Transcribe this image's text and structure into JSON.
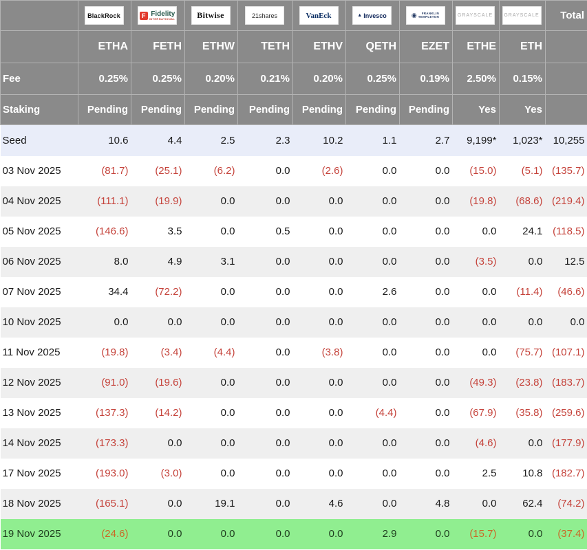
{
  "header": {
    "total_label": "Total",
    "fee_label": "Fee",
    "staking_label": "Staking",
    "providers": [
      {
        "id": "blackrock",
        "logo": "BlackRock",
        "ticker": "ETHA",
        "fee": "0.25%",
        "staking": "Pending"
      },
      {
        "id": "fidelity",
        "logo_f": "F",
        "logo": "Fidelity",
        "logo_sub": "INTERNATIONAL",
        "ticker": "FETH",
        "fee": "0.25%",
        "staking": "Pending"
      },
      {
        "id": "bitwise",
        "logo": "Bitwise",
        "ticker": "ETHW",
        "fee": "0.20%",
        "staking": "Pending"
      },
      {
        "id": "21shares",
        "logo": "21shares",
        "ticker": "TETH",
        "fee": "0.21%",
        "staking": "Pending"
      },
      {
        "id": "vaneck",
        "logo": "VanEck",
        "ticker": "ETHV",
        "fee": "0.20%",
        "staking": "Pending"
      },
      {
        "id": "invesco",
        "logo": "Invesco",
        "ticker": "QETH",
        "fee": "0.25%",
        "staking": "Pending"
      },
      {
        "id": "franklin",
        "logo_line1": "FRANKLIN",
        "logo_line2": "TEMPLETON",
        "ticker": "EZET",
        "fee": "0.19%",
        "staking": "Pending"
      },
      {
        "id": "grayscale-ethe",
        "logo": "GRAYSCALE",
        "ticker": "ETHE",
        "fee": "2.50%",
        "staking": "Yes"
      },
      {
        "id": "grayscale-eth",
        "logo": "GRAYSCALE",
        "ticker": "ETH",
        "fee": "0.15%",
        "staking": "Yes"
      }
    ]
  },
  "body": {
    "seed": {
      "label": "Seed",
      "values": [
        "10.6",
        "4.4",
        "2.5",
        "2.3",
        "10.2",
        "1.1",
        "2.7",
        "9,199*",
        "1,023*",
        "10,255"
      ]
    },
    "rows": [
      {
        "date": "03 Nov 2025",
        "values": [
          "(81.7)",
          "(25.1)",
          "(6.2)",
          "0.0",
          "(2.6)",
          "0.0",
          "0.0",
          "(15.0)",
          "(5.1)",
          "(135.7)"
        ]
      },
      {
        "date": "04 Nov 2025",
        "values": [
          "(111.1)",
          "(19.9)",
          "0.0",
          "0.0",
          "0.0",
          "0.0",
          "0.0",
          "(19.8)",
          "(68.6)",
          "(219.4)"
        ]
      },
      {
        "date": "05 Nov 2025",
        "values": [
          "(146.6)",
          "3.5",
          "0.0",
          "0.5",
          "0.0",
          "0.0",
          "0.0",
          "0.0",
          "24.1",
          "(118.5)"
        ]
      },
      {
        "date": "06 Nov 2025",
        "values": [
          "8.0",
          "4.9",
          "3.1",
          "0.0",
          "0.0",
          "0.0",
          "0.0",
          "(3.5)",
          "0.0",
          "12.5"
        ]
      },
      {
        "date": "07 Nov 2025",
        "values": [
          "34.4",
          "(72.2)",
          "0.0",
          "0.0",
          "0.0",
          "2.6",
          "0.0",
          "0.0",
          "(11.4)",
          "(46.6)"
        ]
      },
      {
        "date": "10 Nov 2025",
        "values": [
          "0.0",
          "0.0",
          "0.0",
          "0.0",
          "0.0",
          "0.0",
          "0.0",
          "0.0",
          "0.0",
          "0.0"
        ]
      },
      {
        "date": "11 Nov 2025",
        "values": [
          "(19.8)",
          "(3.4)",
          "(4.4)",
          "0.0",
          "(3.8)",
          "0.0",
          "0.0",
          "0.0",
          "(75.7)",
          "(107.1)"
        ]
      },
      {
        "date": "12 Nov 2025",
        "values": [
          "(91.0)",
          "(19.6)",
          "0.0",
          "0.0",
          "0.0",
          "0.0",
          "0.0",
          "(49.3)",
          "(23.8)",
          "(183.7)"
        ]
      },
      {
        "date": "13 Nov 2025",
        "values": [
          "(137.3)",
          "(14.2)",
          "0.0",
          "0.0",
          "0.0",
          "(4.4)",
          "0.0",
          "(67.9)",
          "(35.8)",
          "(259.6)"
        ]
      },
      {
        "date": "14 Nov 2025",
        "values": [
          "(173.3)",
          "0.0",
          "0.0",
          "0.0",
          "0.0",
          "0.0",
          "0.0",
          "(4.6)",
          "0.0",
          "(177.9)"
        ]
      },
      {
        "date": "17 Nov 2025",
        "values": [
          "(193.0)",
          "(3.0)",
          "0.0",
          "0.0",
          "0.0",
          "0.0",
          "0.0",
          "2.5",
          "10.8",
          "(182.7)"
        ]
      },
      {
        "date": "18 Nov 2025",
        "values": [
          "(165.1)",
          "0.0",
          "19.1",
          "0.0",
          "4.6",
          "0.0",
          "4.8",
          "0.0",
          "62.4",
          "(74.2)"
        ]
      },
      {
        "date": "19 Nov 2025",
        "highlight": true,
        "values": [
          "(24.6)",
          "0.0",
          "0.0",
          "0.0",
          "0.0",
          "2.9",
          "0.0",
          "(15.7)",
          "0.0",
          "(37.4)"
        ]
      }
    ]
  },
  "colors": {
    "header_bg": "#8a8a8a",
    "seed_row_bg": "#e9edf9",
    "alt_row_bg": "#efefef",
    "highlight_row_bg": "#90ee90",
    "negative_text": "#c5433b",
    "negative_on_highlight": "#c96a28"
  }
}
